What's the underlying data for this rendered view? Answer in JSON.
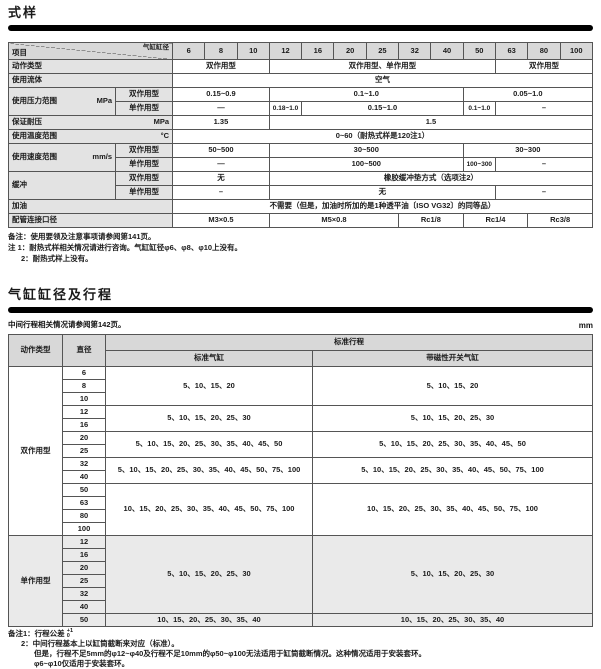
{
  "sections": {
    "spec_title": "式样",
    "bore_title": "气缸缸径及行程"
  },
  "table1": {
    "corner": {
      "left": "项目",
      "right": "气缸缸径"
    },
    "bores": [
      "6",
      "8",
      "10",
      "12",
      "16",
      "20",
      "25",
      "32",
      "40",
      "50",
      "63",
      "80",
      "100"
    ],
    "rows": [
      {
        "cls": "hdr",
        "cells": [
          {
            "diag": [
              "项目",
              "气缸缸径"
            ],
            "c": 2,
            "n": "corner-diagonal-cell"
          },
          {
            "t": "6",
            "k": "hd",
            "n": "bore-header-cell"
          },
          {
            "t": "8",
            "k": "hd",
            "n": "bore-header-cell"
          },
          {
            "t": "10",
            "k": "hd",
            "n": "bore-header-cell"
          },
          {
            "t": "12",
            "k": "hd",
            "n": "bore-header-cell"
          },
          {
            "t": "16",
            "k": "hd",
            "n": "bore-header-cell"
          },
          {
            "t": "20",
            "k": "hd",
            "n": "bore-header-cell"
          },
          {
            "t": "25",
            "k": "hd",
            "n": "bore-header-cell"
          },
          {
            "t": "32",
            "k": "hd",
            "n": "bore-header-cell"
          },
          {
            "t": "40",
            "k": "hd",
            "n": "bore-header-cell"
          },
          {
            "t": "50",
            "k": "hd",
            "n": "bore-header-cell"
          },
          {
            "t": "63",
            "k": "hd",
            "n": "bore-header-cell"
          },
          {
            "t": "80",
            "k": "hd",
            "n": "bore-header-cell"
          },
          {
            "t": "100",
            "k": "hd",
            "n": "bore-header-cell"
          }
        ]
      },
      {
        "cells": [
          {
            "t": "动作类型",
            "c": 2,
            "k": "lab",
            "n": "row-label"
          },
          {
            "t": "双作用型",
            "c": 3
          },
          {
            "t": "双作用型、单作用型",
            "c": 7
          },
          {
            "t": "双作用型",
            "c": 3
          }
        ]
      },
      {
        "cells": [
          {
            "t": "使用流体",
            "c": 2,
            "k": "lab",
            "n": "row-label"
          },
          {
            "t": "空气",
            "c": 13
          }
        ]
      },
      {
        "cells": [
          {
            "t": "使用压力范围",
            "u": "MPa",
            "r": 2,
            "k": "lab",
            "n": "row-label"
          },
          {
            "t": "双作用型",
            "k": "sub",
            "n": "sub-row-label"
          },
          {
            "t": "0.15~0.9",
            "c": 3
          },
          {
            "t": "0.1~1.0",
            "c": 6
          },
          {
            "t": "0.05~1.0",
            "c": 4
          }
        ]
      },
      {
        "cells": [
          {
            "t": "单作用型",
            "k": "sub",
            "n": "sub-row-label"
          },
          {
            "t": "—",
            "c": 3
          },
          {
            "t": "0.18~1.0",
            "k": "sm"
          },
          {
            "t": "0.15~1.0",
            "c": 5
          },
          {
            "t": "0.1~1.0",
            "k": "sm"
          },
          {
            "t": "–",
            "c": 3
          }
        ]
      },
      {
        "cells": [
          {
            "t": "保证耐压",
            "u": "MPa",
            "c": 2,
            "k": "lab",
            "n": "row-label"
          },
          {
            "t": "1.35",
            "c": 3
          },
          {
            "t": "1.5",
            "c": 10
          }
        ]
      },
      {
        "cells": [
          {
            "t": "使用温度范围",
            "u": "°C",
            "c": 2,
            "k": "lab",
            "n": "row-label"
          },
          {
            "t": "0~60（耐热式样是120注1）",
            "c": 13
          }
        ]
      },
      {
        "cells": [
          {
            "t": "使用速度范围",
            "u": "mm/s",
            "r": 2,
            "k": "lab",
            "n": "row-label"
          },
          {
            "t": "双作用型",
            "k": "sub",
            "n": "sub-row-label"
          },
          {
            "t": "50~500",
            "c": 3
          },
          {
            "t": "30~500",
            "c": 6
          },
          {
            "t": "30~300",
            "c": 4
          }
        ]
      },
      {
        "cells": [
          {
            "t": "单作用型",
            "k": "sub",
            "n": "sub-row-label"
          },
          {
            "t": "—",
            "c": 3
          },
          {
            "t": "100~500",
            "c": 6
          },
          {
            "t": "100~300",
            "k": "sm"
          },
          {
            "t": "–",
            "c": 3
          }
        ]
      },
      {
        "cells": [
          {
            "t": "缓冲",
            "r": 2,
            "k": "lab",
            "n": "row-label"
          },
          {
            "t": "双作用型",
            "k": "sub",
            "n": "sub-row-label"
          },
          {
            "t": "无",
            "c": 3
          },
          {
            "t": "橡胶缓冲垫方式（选项注2）",
            "c": 10
          }
        ]
      },
      {
        "cells": [
          {
            "t": "单作用型",
            "k": "sub",
            "n": "sub-row-label"
          },
          {
            "t": "–",
            "c": 3
          },
          {
            "t": "无",
            "c": 7
          },
          {
            "t": "–",
            "c": 3
          }
        ]
      },
      {
        "cells": [
          {
            "t": "加油",
            "c": 2,
            "k": "lab",
            "n": "row-label"
          },
          {
            "t": "不需要（但是，加油时所加的是1种透平油〔ISO VG32〕的同等品）",
            "c": 13
          }
        ]
      },
      {
        "cells": [
          {
            "t": "配管连接口径",
            "c": 2,
            "k": "lab",
            "n": "row-label"
          },
          {
            "t": "M3×0.5",
            "c": 3
          },
          {
            "t": "M5×0.8",
            "c": 4
          },
          {
            "t": "Rc1/8",
            "c": 2
          },
          {
            "t": "Rc1/4",
            "c": 2
          },
          {
            "t": "Rc3/8",
            "c": 2
          }
        ]
      }
    ]
  },
  "notes1": {
    "l1": "备注：使用要领及注意事项请参阅第141页。",
    "l2": "注 1：耐热式样相关情况请进行咨询。气缸缸径φ6、φ8、φ10上没有。",
    "l3": "2：耐热式样上没有。"
  },
  "table2_note": {
    "text": "中间行程相关情况请参阅第142页。",
    "unit": "mm"
  },
  "table2": {
    "rows": [
      {
        "cls": "hdr",
        "cells": [
          {
            "t": "动作类型",
            "r": 2,
            "k": "hd",
            "n": "col-header"
          },
          {
            "t": "直径",
            "r": 2,
            "k": "hd",
            "n": "col-header"
          },
          {
            "t": "标准行程",
            "c": 2,
            "k": "hd",
            "n": "col-header"
          }
        ]
      },
      {
        "cls": "hdr",
        "cells": [
          {
            "t": "标准气缸",
            "k": "hd",
            "n": "col-header"
          },
          {
            "t": "带磁性开关气缸",
            "k": "hd",
            "n": "col-header"
          }
        ]
      },
      {
        "cells": [
          {
            "t": "双作用型",
            "r": 13,
            "n": "group-label"
          },
          {
            "t": "6",
            "n": "bore-cell"
          },
          {
            "t": "5、10、15、20",
            "r": 3,
            "n": "stroke-cell"
          },
          {
            "t": "5、10、15、20",
            "r": 3,
            "n": "stroke-cell"
          }
        ]
      },
      {
        "cells": [
          {
            "t": "8",
            "n": "bore-cell"
          }
        ]
      },
      {
        "cells": [
          {
            "t": "10",
            "n": "bore-cell"
          }
        ]
      },
      {
        "cells": [
          {
            "t": "12",
            "n": "bore-cell"
          },
          {
            "t": "5、10、15、20、25、30",
            "r": 2,
            "n": "stroke-cell"
          },
          {
            "t": "5、10、15、20、25、30",
            "r": 2,
            "n": "stroke-cell"
          }
        ]
      },
      {
        "cells": [
          {
            "t": "16",
            "n": "bore-cell"
          }
        ]
      },
      {
        "cells": [
          {
            "t": "20",
            "n": "bore-cell"
          },
          {
            "t": "5、10、15、20、25、30、35、40、45、50",
            "r": 2,
            "n": "stroke-cell"
          },
          {
            "t": "5、10、15、20、25、30、35、40、45、50",
            "r": 2,
            "n": "stroke-cell"
          }
        ]
      },
      {
        "cells": [
          {
            "t": "25",
            "n": "bore-cell"
          }
        ]
      },
      {
        "cells": [
          {
            "t": "32",
            "n": "bore-cell"
          },
          {
            "t": "5、10、15、20、25、30、35、40、45、50、75、100",
            "r": 2,
            "n": "stroke-cell"
          },
          {
            "t": "5、10、15、20、25、30、35、40、45、50、75、100",
            "r": 2,
            "n": "stroke-cell"
          }
        ]
      },
      {
        "cells": [
          {
            "t": "40",
            "n": "bore-cell"
          }
        ]
      },
      {
        "cells": [
          {
            "t": "50",
            "n": "bore-cell"
          },
          {
            "t": "10、15、20、25、30、35、40、45、50、75、100",
            "r": 4,
            "n": "stroke-cell"
          },
          {
            "t": "10、15、20、25、30、35、40、45、50、75、100",
            "r": 4,
            "n": "stroke-cell"
          }
        ]
      },
      {
        "cells": [
          {
            "t": "63",
            "n": "bore-cell"
          }
        ]
      },
      {
        "cells": [
          {
            "t": "80",
            "n": "bore-cell"
          }
        ]
      },
      {
        "cells": [
          {
            "t": "100",
            "n": "bore-cell"
          }
        ]
      },
      {
        "cells": [
          {
            "t": "单作用型",
            "r": 7,
            "k": "g",
            "n": "group-label"
          },
          {
            "t": "12",
            "k": "g",
            "n": "bore-cell"
          },
          {
            "t": "5、10、15、20、25、30",
            "r": 6,
            "k": "g",
            "n": "stroke-cell"
          },
          {
            "t": "5、10、15、20、25、30",
            "r": 6,
            "k": "g",
            "n": "stroke-cell"
          }
        ]
      },
      {
        "cells": [
          {
            "t": "16",
            "k": "g",
            "n": "bore-cell"
          }
        ]
      },
      {
        "cells": [
          {
            "t": "20",
            "k": "g",
            "n": "bore-cell"
          }
        ]
      },
      {
        "cells": [
          {
            "t": "25",
            "k": "g",
            "n": "bore-cell"
          }
        ]
      },
      {
        "cells": [
          {
            "t": "32",
            "k": "g",
            "n": "bore-cell"
          }
        ]
      },
      {
        "cells": [
          {
            "t": "40",
            "k": "g",
            "n": "bore-cell"
          }
        ]
      },
      {
        "cells": [
          {
            "t": "50",
            "k": "g",
            "n": "bore-cell"
          },
          {
            "t": "10、15、20、25、30、35、40",
            "k": "g",
            "n": "stroke-cell"
          },
          {
            "t": "10、15、20、25、30、35、40",
            "k": "g",
            "n": "stroke-cell"
          }
        ]
      }
    ]
  },
  "notes2": {
    "l1_prefix": "备注1：行程公差 ",
    "tol_sup": "+1",
    "tol_sub": "0",
    "l2": "2：中间行程基本上以缸筒截断来对应（标准）。",
    "l3": "但是，行程不足5mm的φ12~φ40及行程不足10mm的φ50~φ100无法适用于缸筒截断情况。这种情况适用于安装套环。",
    "l4": "φ6~φ10仅适用于安装套环。"
  },
  "colors": {
    "bar": "#000000",
    "header_bg": "#d8d8d8",
    "label_bg": "#e3e3e3",
    "gray_row_bg": "#eaeaea",
    "border": "#555555"
  }
}
